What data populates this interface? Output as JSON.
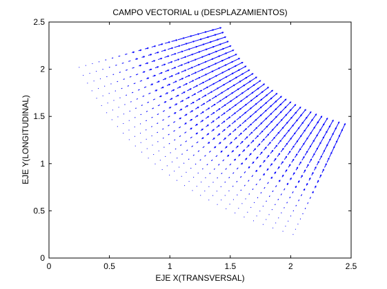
{
  "chart_data": {
    "type": "quiver",
    "title": "CAMPO VECTORIAL u (DESPLAZAMIENTOS)",
    "xlabel": "EJE X(TRANSVERSAL)",
    "ylabel": "EJE Y(LONGITUDINAL)",
    "xlim": [
      0,
      2.5
    ],
    "ylim": [
      0,
      2.5
    ],
    "xticks": [
      "0",
      "0.5",
      "1",
      "1.5",
      "2",
      "2.5"
    ],
    "yticks": [
      "0",
      "0.5",
      "1",
      "1.5",
      "2",
      "2.5"
    ],
    "grid": false,
    "series_color": "#0000ff",
    "field": {
      "shape": "annular-sector",
      "angle_start_deg": 0,
      "angle_end_deg": 90,
      "angle_count": 31,
      "radial_count": 21,
      "outer_corner_1": [
        1.34,
        2.41
      ],
      "outer_corner_2": [
        2.42,
        1.34
      ],
      "inner_corner_1": [
        0.25,
        2.02
      ],
      "inner_corner_2": [
        2.02,
        0.25
      ],
      "max_vector_length": 0.09
    }
  }
}
